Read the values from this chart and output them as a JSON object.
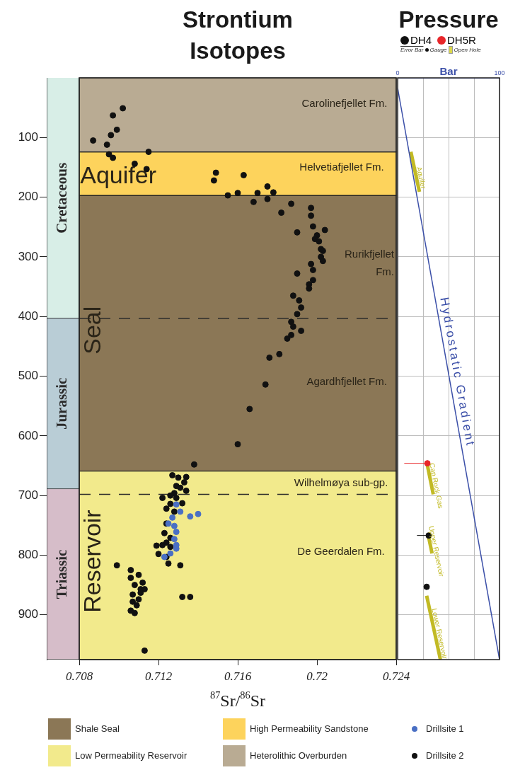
{
  "chart_data": [
    {
      "type": "bar",
      "stacked": true,
      "categories": [
        null
      ],
      "ylim": [
        975,
        0
      ],
      "yticks": [
        100,
        200,
        300,
        400,
        500,
        600,
        700,
        800,
        900
      ],
      "tick_labels": "y",
      "series": [
        {
          "name": "Cretaceous",
          "color": "#d8eee7",
          "values": [
            403
          ]
        },
        {
          "name": "Jurassic",
          "color": "#b9cdd6",
          "values": [
            286
          ]
        },
        {
          "name": "Triassic",
          "color": "#d6bdc9",
          "values": [
            286
          ]
        }
      ]
    },
    {
      "type": "scatter",
      "title": "Strontium Isotopes",
      "xlabel": "$^{87}$Sr/$^{86}$Sr",
      "xlim": [
        0.708,
        0.724
      ],
      "xticks": [
        0.708,
        0.712,
        0.716,
        0.72,
        0.724
      ],
      "ylim": [
        975,
        0
      ],
      "tick_labels": "x",
      "marker": "circle",
      "legend": "bottom",
      "bands": [
        {
          "axis": "y",
          "from": 197,
          "to": 659,
          "label": "Shale Seal",
          "color": "#8b7756"
        },
        {
          "axis": "y",
          "from": 659,
          "to": 975,
          "label": "Low Permeability Reservoir",
          "color": "#f2ea8c"
        },
        {
          "axis": "y",
          "from": 124,
          "to": 197,
          "label": "High Permeability Sandstone",
          "color": "#fdd35c"
        },
        {
          "axis": "y",
          "from": 0,
          "to": 124,
          "label": "Heterolithic Overburden",
          "color": "#b9ab93"
        }
      ],
      "ref_lines": [
        {
          "axis": "y",
          "value": 403,
          "line_style": "dashed"
        },
        {
          "axis": "y",
          "value": 698,
          "line_style": "dashed"
        }
      ],
      "annotations": [
        "Carolinefjellet Fm.",
        "Helvetiafjellet Fm.",
        "Rurikfjellet Fm.",
        "Agardhfjellet Fm.",
        "Wilhelmøya sub-gp.",
        "De Geerdalen Fm.",
        "Aquifer",
        "Seal",
        "Reservoir"
      ],
      "series": [
        {
          "name": "Drillsite 1",
          "type": "scatter",
          "color": "#4a6fc4",
          "x": [
            0.7129,
            0.7131,
            0.7136,
            0.714,
            0.7127,
            0.7125,
            0.7128,
            0.7129,
            0.7128,
            0.7129,
            0.7129,
            0.7126,
            0.7123
          ],
          "values": [
            715,
            727,
            735,
            731,
            737,
            747,
            751,
            761,
            773,
            783,
            789,
            797,
            803
          ]
        },
        {
          "name": "Drillsite 2",
          "type": "scatter",
          "color": "#111111",
          "x": [
            0.7087,
            0.7094,
            0.7096,
            0.7099,
            0.7097,
            0.7102,
            0.7095,
            0.7097,
            0.7108,
            0.7114,
            0.7115,
            0.7149,
            0.7148,
            0.7155,
            0.7163,
            0.716,
            0.717,
            0.7175,
            0.7178,
            0.7175,
            0.7168,
            0.7187,
            0.7182,
            0.7197,
            0.7197,
            0.7198,
            0.7204,
            0.719,
            0.72,
            0.7199,
            0.7201,
            0.7202,
            0.7203,
            0.7202,
            0.7203,
            0.7197,
            0.7198,
            0.719,
            0.7198,
            0.7196,
            0.7196,
            0.7188,
            0.7191,
            0.7192,
            0.719,
            0.7187,
            0.7188,
            0.7192,
            0.7187,
            0.7185,
            0.7181,
            0.7176,
            0.7174,
            0.7166,
            0.716,
            0.7138,
            0.7127,
            0.713,
            0.7134,
            0.7133,
            0.7129,
            0.7131,
            0.7134,
            0.7128,
            0.7126,
            0.7129,
            0.7122,
            0.7132,
            0.7126,
            0.7124,
            0.7128,
            0.7124,
            0.7123,
            0.7126,
            0.7124,
            0.7122,
            0.7119,
            0.7126,
            0.712,
            0.7124,
            0.7125,
            0.7131,
            0.7132,
            0.7136,
            0.7099,
            0.7113,
            0.7106,
            0.711,
            0.7106,
            0.7112,
            0.7108,
            0.7111,
            0.7113,
            0.7107,
            0.7111,
            0.711,
            0.7107,
            0.7109,
            0.7106,
            0.7108
          ],
          "values": [
            105,
            112,
            96,
            87,
            63,
            51,
            128,
            134,
            144,
            153,
            124,
            159,
            172,
            197,
            163,
            193,
            193,
            182,
            192,
            203,
            208,
            211,
            226,
            218,
            231,
            249,
            255,
            259,
            264,
            270,
            274,
            287,
            290,
            300,
            307,
            312,
            322,
            328,
            339,
            346,
            353,
            365,
            373,
            385,
            396,
            409,
            417,
            424,
            431,
            437,
            463,
            469,
            514,
            555,
            614,
            648,
            666,
            670,
            669,
            678,
            684,
            687,
            692,
            696,
            700,
            704,
            704,
            713,
            714,
            722,
            727,
            747,
            763,
            771,
            779,
            783,
            784,
            786,
            798,
            803,
            814,
            817,
            870,
            870,
            817,
            960,
            825,
            833,
            838,
            846,
            850,
            857,
            857,
            866,
            863,
            874,
            878,
            884,
            893,
            897
          ]
        }
      ]
    },
    {
      "type": "scatter",
      "title": "Pressure",
      "xlabel": "Bar",
      "xlim": [
        0,
        100
      ],
      "xticks": [
        0,
        {
          "value": 25,
          "label": null
        },
        {
          "value": 50,
          "label": null
        },
        {
          "value": 75,
          "label": null
        },
        100
      ],
      "ylim": [
        975,
        0
      ],
      "yticks": [
        100,
        200,
        300,
        400,
        500,
        600,
        700,
        800,
        900
      ],
      "tick_labels": "x",
      "grid": true,
      "legend": "top",
      "annotations": [
        "Error Bar",
        "Gauge",
        "Open Hole"
      ],
      "series": [
        {
          "name": "DH4",
          "type": "scatter",
          "marker": "circle",
          "color": "#111111",
          "x": [
            30.5,
            28.5
          ],
          "values": [
            767,
            853
          ],
          "xerrors": [
            [
              19,
              30.5
            ],
            null
          ]
        },
        {
          "name": "DH5R",
          "type": "scatter",
          "marker": "circle",
          "color": "#e8262a",
          "x": [
            29.2
          ],
          "values": [
            646
          ],
          "xerrors": [
            [
              6.5,
              29.2
            ]
          ]
        },
        {
          "name": "Hydrostatic Gradient",
          "type": "line",
          "color": "#3b4fa8",
          "x": [
            0,
            100
          ],
          "values": [
            17,
            975
          ]
        },
        {
          "name": "Aquifer",
          "type": "line",
          "color": "#c2ba24",
          "x": [
            13,
            21.4
          ],
          "values": [
            124,
            191
          ]
        },
        {
          "name": "Cap Rock Gas",
          "type": "line",
          "color": "#c2ba24",
          "x": [
            29.2,
            35
          ],
          "values": [
            649,
            698
          ]
        },
        {
          "name": "Upper Reservoir",
          "type": "line",
          "color": "#c2ba24",
          "x": [
            30.5,
            33.8
          ],
          "values": [
            770,
            797
          ]
        },
        {
          "name": "Lower Reservoir",
          "type": "line",
          "color": "#c2ba24",
          "x": [
            28.5,
            42
          ],
          "values": [
            868,
            975
          ]
        }
      ]
    }
  ]
}
